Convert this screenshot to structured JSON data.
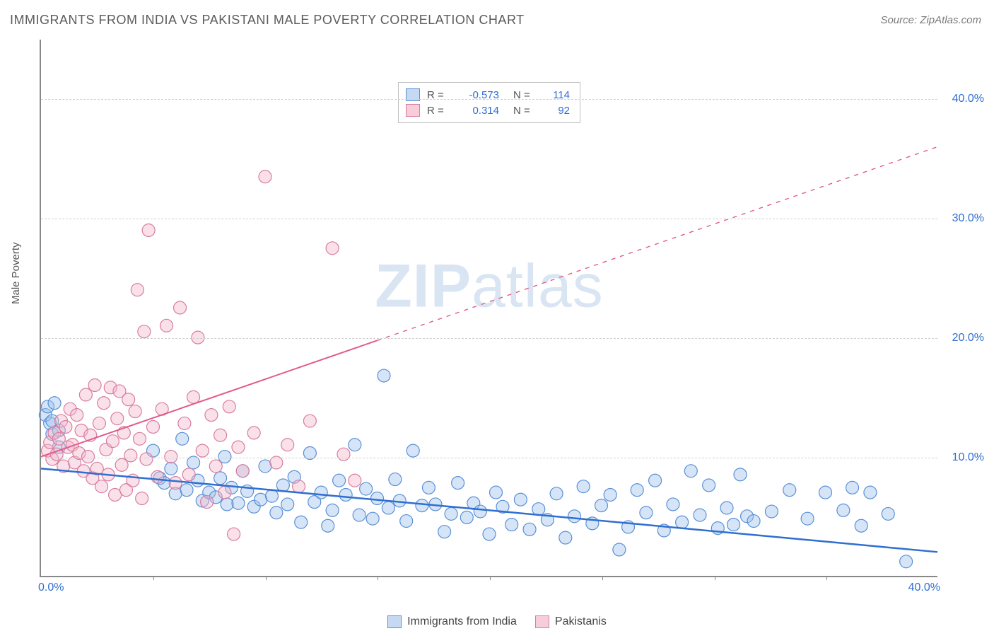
{
  "title": "IMMIGRANTS FROM INDIA VS PAKISTANI MALE POVERTY CORRELATION CHART",
  "source": "Source: ZipAtlas.com",
  "ylabel": "Male Poverty",
  "watermark": {
    "bold": "ZIP",
    "rest": "atlas"
  },
  "chart": {
    "type": "scatter",
    "background_color": "#ffffff",
    "grid_color": "#d8d8d8",
    "xlim": [
      0,
      40
    ],
    "ylim": [
      0,
      45
    ],
    "y_ticks": [
      10,
      20,
      30,
      40
    ],
    "y_tick_labels": [
      "10.0%",
      "20.0%",
      "30.0%",
      "40.0%"
    ],
    "x_tick_marks": [
      5,
      10,
      15,
      20,
      25,
      30,
      35
    ],
    "x_tick_labels": {
      "min": "0.0%",
      "max": "40.0%"
    },
    "axis_label_color": "#2f6fd0",
    "axis_label_fontsize": 16,
    "marker_radius": 9,
    "marker_opacity": 0.42,
    "series": [
      {
        "name": "Immigrants from India",
        "color_fill": "#9cc0ec",
        "color_stroke": "#5a8fd6",
        "trend": {
          "x1": 0,
          "y1": 9.0,
          "x2": 40,
          "y2": 2.0,
          "solid_until_x": 40,
          "color": "#2f6fd0",
          "width": 2.5
        },
        "R": "-0.573",
        "N": "114",
        "points": [
          [
            0.2,
            13.5
          ],
          [
            0.3,
            14.2
          ],
          [
            0.4,
            12.8
          ],
          [
            0.5,
            13.0
          ],
          [
            0.5,
            11.9
          ],
          [
            0.6,
            14.5
          ],
          [
            0.8,
            12.2
          ],
          [
            0.8,
            10.8
          ],
          [
            5.0,
            10.5
          ],
          [
            5.3,
            8.2
          ],
          [
            5.5,
            7.8
          ],
          [
            5.8,
            9.0
          ],
          [
            6.0,
            6.9
          ],
          [
            6.3,
            11.5
          ],
          [
            6.5,
            7.2
          ],
          [
            6.8,
            9.5
          ],
          [
            7.0,
            8.0
          ],
          [
            7.2,
            6.3
          ],
          [
            7.5,
            7.0
          ],
          [
            7.8,
            6.6
          ],
          [
            8.0,
            8.2
          ],
          [
            8.2,
            10.0
          ],
          [
            8.3,
            6.0
          ],
          [
            8.5,
            7.4
          ],
          [
            8.8,
            6.1
          ],
          [
            9.0,
            8.8
          ],
          [
            9.2,
            7.1
          ],
          [
            9.5,
            5.8
          ],
          [
            9.8,
            6.4
          ],
          [
            10.0,
            9.2
          ],
          [
            10.3,
            6.7
          ],
          [
            10.5,
            5.3
          ],
          [
            10.8,
            7.6
          ],
          [
            11.0,
            6.0
          ],
          [
            11.3,
            8.3
          ],
          [
            11.6,
            4.5
          ],
          [
            12.0,
            10.3
          ],
          [
            12.2,
            6.2
          ],
          [
            12.5,
            7.0
          ],
          [
            12.8,
            4.2
          ],
          [
            13.0,
            5.5
          ],
          [
            13.3,
            8.0
          ],
          [
            13.6,
            6.8
          ],
          [
            14.0,
            11.0
          ],
          [
            14.2,
            5.1
          ],
          [
            14.5,
            7.3
          ],
          [
            14.8,
            4.8
          ],
          [
            15.0,
            6.5
          ],
          [
            15.3,
            16.8
          ],
          [
            15.5,
            5.7
          ],
          [
            15.8,
            8.1
          ],
          [
            16.0,
            6.3
          ],
          [
            16.3,
            4.6
          ],
          [
            16.6,
            10.5
          ],
          [
            17.0,
            5.9
          ],
          [
            17.3,
            7.4
          ],
          [
            17.6,
            6.0
          ],
          [
            18.0,
            3.7
          ],
          [
            18.3,
            5.2
          ],
          [
            18.6,
            7.8
          ],
          [
            19.0,
            4.9
          ],
          [
            19.3,
            6.1
          ],
          [
            19.6,
            5.4
          ],
          [
            20.0,
            3.5
          ],
          [
            20.3,
            7.0
          ],
          [
            20.6,
            5.8
          ],
          [
            21.0,
            4.3
          ],
          [
            21.4,
            6.4
          ],
          [
            21.8,
            3.9
          ],
          [
            22.2,
            5.6
          ],
          [
            22.6,
            4.7
          ],
          [
            23.0,
            6.9
          ],
          [
            23.4,
            3.2
          ],
          [
            23.8,
            5.0
          ],
          [
            24.2,
            7.5
          ],
          [
            24.6,
            4.4
          ],
          [
            25.0,
            5.9
          ],
          [
            25.4,
            6.8
          ],
          [
            25.8,
            2.2
          ],
          [
            26.2,
            4.1
          ],
          [
            26.6,
            7.2
          ],
          [
            27.0,
            5.3
          ],
          [
            27.4,
            8.0
          ],
          [
            27.8,
            3.8
          ],
          [
            28.2,
            6.0
          ],
          [
            28.6,
            4.5
          ],
          [
            29.0,
            8.8
          ],
          [
            29.4,
            5.1
          ],
          [
            29.8,
            7.6
          ],
          [
            30.2,
            4.0
          ],
          [
            30.6,
            5.7
          ],
          [
            30.9,
            4.3
          ],
          [
            31.2,
            8.5
          ],
          [
            31.5,
            5.0
          ],
          [
            31.8,
            4.6
          ],
          [
            32.6,
            5.4
          ],
          [
            33.4,
            7.2
          ],
          [
            34.2,
            4.8
          ],
          [
            35.0,
            7.0
          ],
          [
            35.8,
            5.5
          ],
          [
            36.2,
            7.4
          ],
          [
            36.6,
            4.2
          ],
          [
            37.0,
            7.0
          ],
          [
            37.8,
            5.2
          ],
          [
            38.6,
            1.2
          ]
        ]
      },
      {
        "name": "Pakistanis",
        "color_fill": "#f3b8cb",
        "color_stroke": "#d97ca0",
        "trend": {
          "x1": 0,
          "y1": 10.0,
          "x2": 40,
          "y2": 36.0,
          "solid_until_x": 15,
          "color": "#e15b8a",
          "width": 2
        },
        "R": "0.314",
        "N": "92",
        "points": [
          [
            0.3,
            10.5
          ],
          [
            0.4,
            11.2
          ],
          [
            0.5,
            9.8
          ],
          [
            0.6,
            12.0
          ],
          [
            0.7,
            10.2
          ],
          [
            0.8,
            11.5
          ],
          [
            0.9,
            13.0
          ],
          [
            1.0,
            9.2
          ],
          [
            1.1,
            12.5
          ],
          [
            1.2,
            10.8
          ],
          [
            1.3,
            14.0
          ],
          [
            1.4,
            11.0
          ],
          [
            1.5,
            9.5
          ],
          [
            1.6,
            13.5
          ],
          [
            1.7,
            10.3
          ],
          [
            1.8,
            12.2
          ],
          [
            1.9,
            8.8
          ],
          [
            2.0,
            15.2
          ],
          [
            2.1,
            10.0
          ],
          [
            2.2,
            11.8
          ],
          [
            2.3,
            8.2
          ],
          [
            2.4,
            16.0
          ],
          [
            2.5,
            9.0
          ],
          [
            2.6,
            12.8
          ],
          [
            2.7,
            7.5
          ],
          [
            2.8,
            14.5
          ],
          [
            2.9,
            10.6
          ],
          [
            3.0,
            8.5
          ],
          [
            3.1,
            15.8
          ],
          [
            3.2,
            11.3
          ],
          [
            3.3,
            6.8
          ],
          [
            3.4,
            13.2
          ],
          [
            3.5,
            15.5
          ],
          [
            3.6,
            9.3
          ],
          [
            3.7,
            12.0
          ],
          [
            3.8,
            7.2
          ],
          [
            3.9,
            14.8
          ],
          [
            4.0,
            10.1
          ],
          [
            4.1,
            8.0
          ],
          [
            4.2,
            13.8
          ],
          [
            4.3,
            24.0
          ],
          [
            4.4,
            11.5
          ],
          [
            4.5,
            6.5
          ],
          [
            4.6,
            20.5
          ],
          [
            4.7,
            9.8
          ],
          [
            4.8,
            29.0
          ],
          [
            5.0,
            12.5
          ],
          [
            5.2,
            8.3
          ],
          [
            5.4,
            14.0
          ],
          [
            5.6,
            21.0
          ],
          [
            5.8,
            10.0
          ],
          [
            6.0,
            7.8
          ],
          [
            6.2,
            22.5
          ],
          [
            6.4,
            12.8
          ],
          [
            6.6,
            8.5
          ],
          [
            6.8,
            15.0
          ],
          [
            7.0,
            20.0
          ],
          [
            7.2,
            10.5
          ],
          [
            7.4,
            6.2
          ],
          [
            7.6,
            13.5
          ],
          [
            7.8,
            9.2
          ],
          [
            8.0,
            11.8
          ],
          [
            8.2,
            7.0
          ],
          [
            8.4,
            14.2
          ],
          [
            8.6,
            3.5
          ],
          [
            8.8,
            10.8
          ],
          [
            9.0,
            8.8
          ],
          [
            9.5,
            12.0
          ],
          [
            10.0,
            33.5
          ],
          [
            10.5,
            9.5
          ],
          [
            11.0,
            11.0
          ],
          [
            11.5,
            7.5
          ],
          [
            12.0,
            13.0
          ],
          [
            13.0,
            27.5
          ],
          [
            13.5,
            10.2
          ],
          [
            14.0,
            8.0
          ]
        ]
      }
    ]
  },
  "legend_bottom": [
    {
      "label": "Immigrants from India",
      "swatch": "blue"
    },
    {
      "label": "Pakistanis",
      "swatch": "pink"
    }
  ]
}
